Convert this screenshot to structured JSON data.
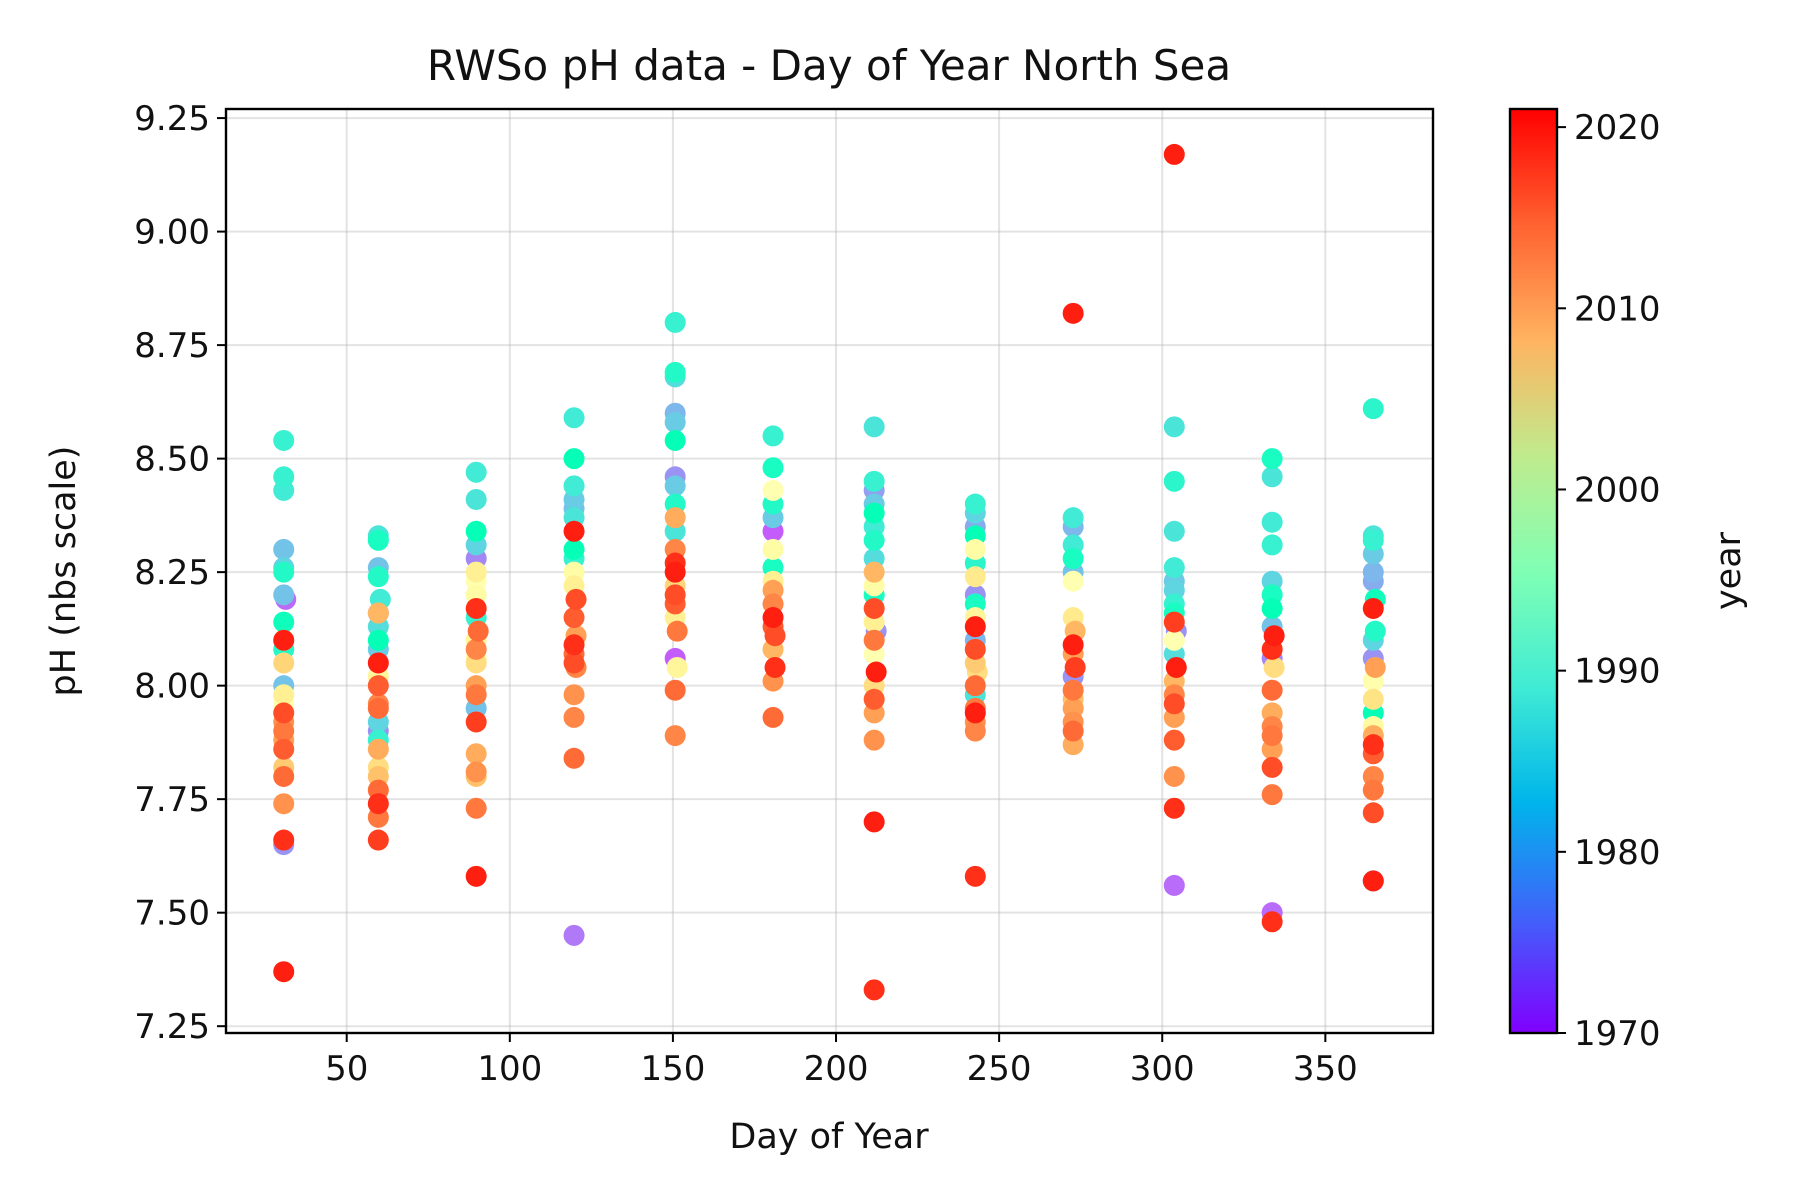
{
  "chart_data": {
    "type": "scatter",
    "title": "RWSo pH data - Day of Year North Sea",
    "xlabel": "Day of Year",
    "ylabel": "pH (nbs scale)",
    "xlim": [
      13,
      383
    ],
    "ylim": [
      7.235,
      9.27
    ],
    "x_ticks": [
      50,
      100,
      150,
      200,
      250,
      300,
      350
    ],
    "x_tick_labels": [
      "50",
      "100",
      "150",
      "200",
      "250",
      "300",
      "350"
    ],
    "y_ticks": [
      7.25,
      7.5,
      7.75,
      8.0,
      8.25,
      8.5,
      8.75,
      9.0,
      9.25
    ],
    "y_tick_labels": [
      "7.25",
      "7.50",
      "7.75",
      "8.00",
      "8.25",
      "8.50",
      "8.75",
      "9.00",
      "9.25"
    ],
    "grid": true,
    "colorbar": {
      "label": "year",
      "colormap": "rainbow",
      "range": [
        1970,
        2021
      ],
      "ticks": [
        1970,
        1980,
        1990,
        2000,
        2010,
        2020
      ],
      "tick_labels": [
        "1970",
        "1980",
        "1990",
        "2000",
        "2010",
        "2020"
      ]
    },
    "point_columns": [
      "day",
      "ph",
      "year"
    ],
    "points": [
      [
        31,
        8.54,
        1990
      ],
      [
        31,
        8.46,
        1990
      ],
      [
        31,
        8.43,
        1989
      ],
      [
        31,
        8.3,
        1984
      ],
      [
        31,
        8.26,
        1986
      ],
      [
        31,
        8.25,
        1992
      ],
      [
        31,
        8.2,
        1984
      ],
      [
        31,
        8.19,
        1977
      ],
      [
        31,
        8.14,
        1994
      ],
      [
        31,
        8.1,
        1998
      ],
      [
        31,
        8.08,
        1992
      ],
      [
        31,
        8.1,
        2019
      ],
      [
        31,
        8.05,
        2005
      ],
      [
        31,
        8.0,
        1984
      ],
      [
        31,
        7.98,
        2001
      ],
      [
        31,
        7.96,
        1996
      ],
      [
        31,
        7.94,
        2016
      ],
      [
        31,
        7.92,
        2011
      ],
      [
        31,
        7.9,
        2013
      ],
      [
        31,
        7.88,
        2010
      ],
      [
        31,
        7.86,
        2015
      ],
      [
        31,
        7.82,
        2006
      ],
      [
        31,
        7.8,
        2014
      ],
      [
        31,
        7.74,
        2011
      ],
      [
        31,
        7.66,
        2018
      ],
      [
        31,
        7.65,
        1980
      ],
      [
        31,
        7.37,
        2019
      ],
      [
        60,
        8.33,
        1988
      ],
      [
        60,
        8.32,
        1993
      ],
      [
        60,
        8.26,
        1984
      ],
      [
        60,
        8.24,
        1992
      ],
      [
        60,
        8.19,
        1989
      ],
      [
        60,
        8.16,
        1977
      ],
      [
        60,
        8.13,
        1987
      ],
      [
        60,
        8.1,
        1995
      ],
      [
        60,
        8.08,
        1985
      ],
      [
        60,
        8.05,
        2019
      ],
      [
        60,
        8.02,
        2000
      ],
      [
        60,
        8.0,
        2015
      ],
      [
        60,
        7.96,
        2012
      ],
      [
        60,
        7.95,
        2014
      ],
      [
        60,
        7.92,
        1986
      ],
      [
        60,
        7.9,
        1980
      ],
      [
        60,
        7.88,
        1990
      ],
      [
        60,
        7.86,
        2009
      ],
      [
        60,
        7.82,
        2004
      ],
      [
        60,
        7.8,
        2007
      ],
      [
        60,
        7.77,
        2014
      ],
      [
        60,
        7.74,
        2018
      ],
      [
        60,
        7.71,
        2013
      ],
      [
        60,
        7.66,
        2017
      ],
      [
        60,
        8.16,
        2008
      ],
      [
        90,
        8.47,
        1989
      ],
      [
        90,
        8.41,
        1988
      ],
      [
        90,
        8.34,
        1995
      ],
      [
        90,
        8.31,
        1986
      ],
      [
        90,
        8.28,
        1979
      ],
      [
        90,
        8.25,
        2001
      ],
      [
        90,
        8.23,
        1996
      ],
      [
        90,
        8.2,
        1998
      ],
      [
        90,
        8.17,
        2018
      ],
      [
        90,
        8.15,
        1990
      ],
      [
        90,
        8.12,
        2014
      ],
      [
        90,
        8.1,
        2000
      ],
      [
        90,
        8.08,
        2012
      ],
      [
        90,
        8.06,
        1998
      ],
      [
        90,
        8.05,
        2004
      ],
      [
        90,
        8.0,
        2010
      ],
      [
        90,
        7.98,
        2013
      ],
      [
        90,
        7.95,
        1984
      ],
      [
        90,
        7.92,
        2017
      ],
      [
        90,
        7.85,
        2009
      ],
      [
        90,
        7.81,
        2011
      ],
      [
        90,
        7.8,
        2007
      ],
      [
        90,
        7.73,
        2013
      ],
      [
        90,
        7.58,
        2019
      ],
      [
        120,
        8.59,
        1989
      ],
      [
        120,
        8.5,
        1995
      ],
      [
        120,
        8.44,
        1989
      ],
      [
        120,
        8.41,
        1985
      ],
      [
        120,
        8.39,
        1984
      ],
      [
        120,
        8.37,
        1988
      ],
      [
        120,
        8.34,
        2019
      ],
      [
        120,
        8.3,
        1995
      ],
      [
        120,
        8.28,
        1990
      ],
      [
        120,
        8.25,
        1998
      ],
      [
        120,
        8.22,
        2001
      ],
      [
        120,
        8.19,
        2016
      ],
      [
        120,
        8.15,
        2015
      ],
      [
        120,
        8.11,
        2010
      ],
      [
        120,
        8.09,
        2018
      ],
      [
        120,
        8.07,
        2014
      ],
      [
        120,
        8.05,
        2016
      ],
      [
        120,
        8.04,
        2012
      ],
      [
        120,
        7.98,
        2011
      ],
      [
        120,
        7.93,
        2012
      ],
      [
        120,
        7.84,
        2014
      ],
      [
        120,
        7.45,
        1978
      ],
      [
        151,
        8.8,
        1990
      ],
      [
        151,
        8.69,
        1992
      ],
      [
        151,
        8.68,
        1987
      ],
      [
        151,
        8.6,
        1983
      ],
      [
        151,
        8.58,
        1985
      ],
      [
        151,
        8.54,
        1995
      ],
      [
        151,
        8.46,
        1980
      ],
      [
        151,
        8.44,
        1985
      ],
      [
        151,
        8.4,
        1992
      ],
      [
        151,
        8.37,
        2009
      ],
      [
        151,
        8.34,
        1988
      ],
      [
        151,
        8.3,
        2012
      ],
      [
        151,
        8.27,
        2018
      ],
      [
        151,
        8.25,
        2019
      ],
      [
        151,
        8.22,
        2005
      ],
      [
        151,
        8.2,
        2016
      ],
      [
        151,
        8.18,
        2015
      ],
      [
        151,
        8.15,
        2001
      ],
      [
        151,
        8.12,
        2013
      ],
      [
        151,
        8.06,
        1976
      ],
      [
        151,
        8.04,
        2000
      ],
      [
        151,
        7.99,
        2014
      ],
      [
        151,
        7.89,
        2012
      ],
      [
        181,
        8.55,
        1990
      ],
      [
        181,
        8.48,
        1993
      ],
      [
        181,
        8.43,
        1996
      ],
      [
        181,
        8.4,
        1992
      ],
      [
        181,
        8.37,
        1985
      ],
      [
        181,
        8.34,
        1976
      ],
      [
        181,
        8.3,
        1998
      ],
      [
        181,
        8.26,
        1993
      ],
      [
        181,
        8.23,
        2001
      ],
      [
        181,
        8.21,
        2010
      ],
      [
        181,
        8.18,
        2012
      ],
      [
        181,
        8.15,
        2019
      ],
      [
        181,
        8.13,
        2015
      ],
      [
        181,
        8.11,
        2016
      ],
      [
        181,
        8.08,
        2008
      ],
      [
        181,
        8.04,
        2018
      ],
      [
        181,
        8.01,
        2011
      ],
      [
        181,
        7.93,
        2014
      ],
      [
        212,
        8.57,
        1988
      ],
      [
        212,
        8.45,
        1990
      ],
      [
        212,
        8.43,
        1981
      ],
      [
        212,
        8.4,
        1985
      ],
      [
        212,
        8.38,
        1995
      ],
      [
        212,
        8.35,
        1989
      ],
      [
        212,
        8.32,
        1992
      ],
      [
        212,
        8.28,
        1987
      ],
      [
        212,
        8.25,
        2008
      ],
      [
        212,
        8.22,
        1998
      ],
      [
        212,
        8.2,
        1993
      ],
      [
        212,
        8.17,
        2016
      ],
      [
        212,
        8.14,
        2001
      ],
      [
        212,
        8.12,
        1980
      ],
      [
        212,
        8.1,
        2013
      ],
      [
        212,
        8.07,
        1996
      ],
      [
        212,
        8.03,
        2019
      ],
      [
        212,
        8.0,
        2004
      ],
      [
        212,
        7.97,
        2015
      ],
      [
        212,
        7.94,
        2010
      ],
      [
        212,
        7.88,
        2011
      ],
      [
        212,
        7.7,
        2019
      ],
      [
        212,
        7.33,
        2018
      ],
      [
        243,
        8.4,
        1990
      ],
      [
        243,
        8.38,
        1986
      ],
      [
        243,
        8.35,
        1982
      ],
      [
        243,
        8.33,
        1995
      ],
      [
        243,
        8.3,
        1998
      ],
      [
        243,
        8.27,
        1991
      ],
      [
        243,
        8.24,
        2002
      ],
      [
        243,
        8.2,
        1980
      ],
      [
        243,
        8.18,
        1993
      ],
      [
        243,
        8.15,
        2000
      ],
      [
        243,
        8.13,
        2019
      ],
      [
        243,
        8.1,
        1983
      ],
      [
        243,
        8.08,
        2016
      ],
      [
        243,
        8.05,
        2006
      ],
      [
        243,
        8.03,
        2004
      ],
      [
        243,
        8.0,
        2014
      ],
      [
        243,
        7.98,
        1988
      ],
      [
        243,
        7.95,
        2013
      ],
      [
        243,
        7.94,
        2019
      ],
      [
        243,
        7.92,
        2011
      ],
      [
        243,
        7.9,
        2012
      ],
      [
        243,
        7.58,
        2018
      ],
      [
        273,
        8.82,
        2019
      ],
      [
        273,
        8.37,
        1989
      ],
      [
        273,
        8.35,
        1983
      ],
      [
        273,
        8.31,
        1989
      ],
      [
        273,
        8.28,
        1993
      ],
      [
        273,
        8.25,
        1984
      ],
      [
        273,
        8.23,
        1996
      ],
      [
        273,
        8.15,
        2002
      ],
      [
        273,
        8.12,
        2008
      ],
      [
        273,
        8.09,
        2019
      ],
      [
        273,
        8.07,
        2010
      ],
      [
        273,
        8.04,
        2017
      ],
      [
        273,
        8.02,
        1980
      ],
      [
        273,
        7.99,
        2013
      ],
      [
        273,
        7.97,
        2007
      ],
      [
        273,
        7.95,
        2010
      ],
      [
        273,
        7.92,
        2011
      ],
      [
        273,
        7.9,
        2014
      ],
      [
        273,
        7.87,
        2009
      ],
      [
        304,
        9.17,
        2019
      ],
      [
        304,
        8.57,
        1988
      ],
      [
        304,
        8.45,
        1991
      ],
      [
        304,
        8.34,
        1988
      ],
      [
        304,
        8.26,
        1989
      ],
      [
        304,
        8.23,
        1985
      ],
      [
        304,
        8.21,
        1986
      ],
      [
        304,
        8.18,
        1990
      ],
      [
        304,
        8.16,
        1993
      ],
      [
        304,
        8.14,
        2017
      ],
      [
        304,
        8.12,
        1980
      ],
      [
        304,
        8.1,
        1996
      ],
      [
        304,
        8.07,
        1987
      ],
      [
        304,
        8.04,
        2019
      ],
      [
        304,
        8.01,
        2008
      ],
      [
        304,
        7.98,
        2012
      ],
      [
        304,
        7.96,
        2016
      ],
      [
        304,
        7.93,
        2010
      ],
      [
        304,
        7.88,
        2015
      ],
      [
        304,
        7.8,
        2011
      ],
      [
        304,
        7.73,
        2018
      ],
      [
        304,
        7.56,
        1977
      ],
      [
        334,
        8.5,
        1993
      ],
      [
        334,
        8.46,
        1988
      ],
      [
        334,
        8.36,
        1989
      ],
      [
        334,
        8.31,
        1990
      ],
      [
        334,
        8.23,
        1986
      ],
      [
        334,
        8.2,
        1993
      ],
      [
        334,
        8.17,
        1995
      ],
      [
        334,
        8.13,
        1984
      ],
      [
        334,
        8.11,
        2019
      ],
      [
        334,
        8.08,
        2018
      ],
      [
        334,
        8.06,
        1979
      ],
      [
        334,
        8.04,
        2004
      ],
      [
        334,
        7.99,
        2014
      ],
      [
        334,
        7.94,
        2009
      ],
      [
        334,
        7.91,
        2012
      ],
      [
        334,
        7.89,
        2013
      ],
      [
        334,
        7.86,
        2010
      ],
      [
        334,
        7.82,
        2016
      ],
      [
        334,
        7.76,
        2013
      ],
      [
        334,
        7.5,
        1977
      ],
      [
        334,
        7.48,
        2018
      ],
      [
        365,
        8.61,
        1991
      ],
      [
        365,
        8.33,
        1988
      ],
      [
        365,
        8.32,
        1990
      ],
      [
        365,
        8.29,
        1985
      ],
      [
        365,
        8.25,
        1983
      ],
      [
        365,
        8.23,
        1982
      ],
      [
        365,
        8.19,
        1994
      ],
      [
        365,
        8.17,
        2019
      ],
      [
        365,
        8.12,
        1992
      ],
      [
        365,
        8.1,
        1986
      ],
      [
        365,
        8.06,
        1980
      ],
      [
        365,
        8.04,
        2010
      ],
      [
        365,
        8.01,
        1997
      ],
      [
        365,
        7.97,
        2003
      ],
      [
        365,
        7.94,
        1995
      ],
      [
        365,
        7.91,
        1999
      ],
      [
        365,
        7.89,
        2009
      ],
      [
        365,
        7.87,
        2018
      ],
      [
        365,
        7.85,
        2015
      ],
      [
        365,
        7.8,
        2012
      ],
      [
        365,
        7.77,
        2013
      ],
      [
        365,
        7.72,
        2016
      ],
      [
        365,
        7.57,
        1982
      ],
      [
        365,
        7.57,
        2019
      ]
    ]
  }
}
